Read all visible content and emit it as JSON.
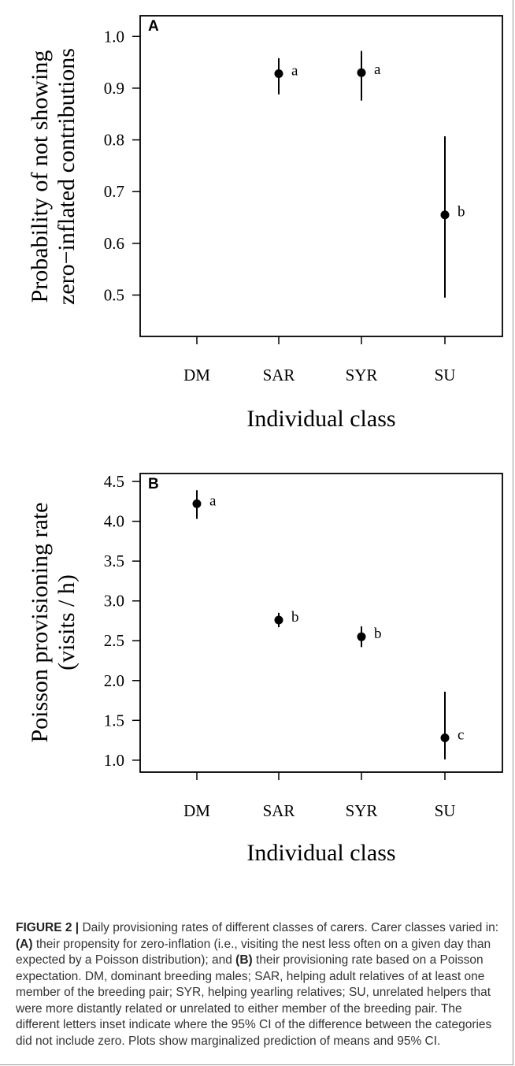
{
  "chart_data": [
    {
      "panel": "A",
      "type": "scatter",
      "categories": [
        "DM",
        "SAR",
        "SYR",
        "SU"
      ],
      "series": [
        {
          "points": [
            {
              "x": "SAR",
              "y": 0.928,
              "ci_low": 0.888,
              "ci_high": 0.958,
              "label": "a"
            },
            {
              "x": "SYR",
              "y": 0.93,
              "ci_low": 0.876,
              "ci_high": 0.972,
              "label": "a"
            },
            {
              "x": "SU",
              "y": 0.655,
              "ci_low": 0.495,
              "ci_high": 0.807,
              "label": "b"
            }
          ]
        }
      ],
      "xlabel": "Individual class",
      "ylabel_line1": "Probability of not showing",
      "ylabel_line2": "zero−inflated contributions",
      "ylim": [
        0.42,
        1.04
      ],
      "yticks": [
        0.5,
        0.6,
        0.7,
        0.8,
        0.9,
        1.0
      ],
      "ytick_labels": [
        "0.5",
        "0.6",
        "0.7",
        "0.8",
        "0.9",
        "1.0"
      ],
      "grid": false
    },
    {
      "panel": "B",
      "type": "scatter",
      "categories": [
        "DM",
        "SAR",
        "SYR",
        "SU"
      ],
      "series": [
        {
          "points": [
            {
              "x": "DM",
              "y": 4.22,
              "ci_low": 4.03,
              "ci_high": 4.39,
              "label": "a"
            },
            {
              "x": "SAR",
              "y": 2.76,
              "ci_low": 2.67,
              "ci_high": 2.85,
              "label": "b"
            },
            {
              "x": "SYR",
              "y": 2.55,
              "ci_low": 2.42,
              "ci_high": 2.68,
              "label": "b"
            },
            {
              "x": "SU",
              "y": 1.28,
              "ci_low": 1.01,
              "ci_high": 1.86,
              "label": "c"
            }
          ]
        }
      ],
      "xlabel": "Individual class",
      "ylabel_line1": "Poisson provisioning rate",
      "ylabel_line2": "(visits / h)",
      "ylim": [
        0.85,
        4.6
      ],
      "yticks": [
        1.0,
        1.5,
        2.0,
        2.5,
        3.0,
        3.5,
        4.0,
        4.5
      ],
      "ytick_labels": [
        "1.0",
        "1.5",
        "2.0",
        "2.5",
        "3.0",
        "3.5",
        "4.0",
        "4.5"
      ],
      "grid": false
    }
  ],
  "caption": {
    "label": "FIGURE 2 |",
    "t1": " Daily provisioning rates of different classes of carers. Carer classes varied in: ",
    "a": "(A)",
    "t2": " their propensity for zero-inflation (i.e., visiting the nest less often on a given day than expected by a Poisson distribution); and ",
    "b": "(B)",
    "t3": " their provisioning rate based on a Poisson expectation. DM, dominant breeding males; SAR, helping adult relatives of at least one member of the breeding pair; SYR, helping yearling relatives; SU, unrelated helpers that were more distantly related or unrelated to either member of the breeding pair. The different letters inset indicate where the 95% CI of the difference between the categories did not include zero. Plots show marginalized prediction of means and 95% CI."
  }
}
